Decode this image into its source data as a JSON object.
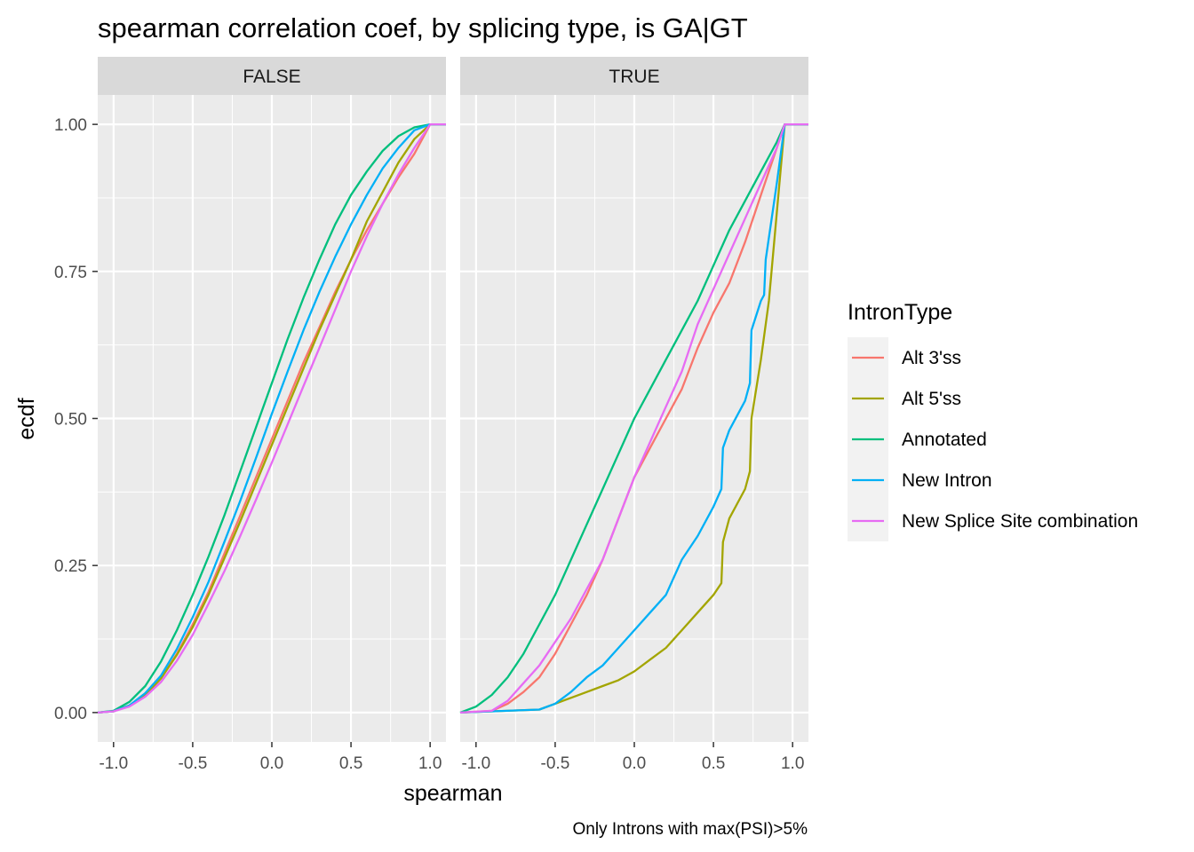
{
  "chart_data": {
    "type": "line",
    "title": "spearman correlation coef, by splicing type, is GA|GT",
    "xlabel": "spearman",
    "ylabel": "ecdf",
    "caption": "Only Introns with max(PSI)>5%",
    "xlim": [
      -1.1,
      1.1
    ],
    "ylim": [
      -0.05,
      1.05
    ],
    "x_ticks": [
      -1.0,
      -0.5,
      0.0,
      0.5,
      1.0
    ],
    "x_tick_labels": [
      "-1.0",
      "-0.5",
      "0.0",
      "0.5",
      "1.0"
    ],
    "y_ticks": [
      0,
      0.25,
      0.5,
      0.75,
      1.0
    ],
    "y_tick_labels": [
      "0.00",
      "0.25",
      "0.50",
      "0.75",
      "1.00"
    ],
    "legend": {
      "title": "IntronType",
      "position": "right"
    },
    "facets": [
      {
        "label": "FALSE",
        "series": [
          {
            "name": "Alt 3'ss",
            "color": "#F8766D",
            "x": [
              -1.1,
              -1.0,
              -0.9,
              -0.8,
              -0.7,
              -0.6,
              -0.5,
              -0.4,
              -0.3,
              -0.2,
              -0.1,
              0.0,
              0.1,
              0.2,
              0.3,
              0.4,
              0.5,
              0.6,
              0.7,
              0.8,
              0.9,
              1.0,
              1.1
            ],
            "y": [
              0,
              0.002,
              0.012,
              0.03,
              0.058,
              0.1,
              0.15,
              0.205,
              0.27,
              0.335,
              0.4,
              0.465,
              0.53,
              0.595,
              0.655,
              0.715,
              0.77,
              0.82,
              0.865,
              0.91,
              0.95,
              1.0,
              1.0
            ]
          },
          {
            "name": "Alt 5'ss",
            "color": "#A3A500",
            "x": [
              -1.1,
              -1.0,
              -0.9,
              -0.8,
              -0.7,
              -0.6,
              -0.5,
              -0.4,
              -0.3,
              -0.2,
              -0.1,
              0.0,
              0.1,
              0.2,
              0.3,
              0.4,
              0.5,
              0.6,
              0.7,
              0.8,
              0.9,
              1.0,
              1.1
            ],
            "y": [
              0,
              0.002,
              0.012,
              0.03,
              0.058,
              0.098,
              0.145,
              0.2,
              0.262,
              0.325,
              0.39,
              0.455,
              0.52,
              0.585,
              0.65,
              0.71,
              0.77,
              0.835,
              0.885,
              0.935,
              0.975,
              1.0,
              1.0
            ]
          },
          {
            "name": "Annotated",
            "color": "#00BF7D",
            "x": [
              -1.1,
              -1.0,
              -0.9,
              -0.8,
              -0.7,
              -0.6,
              -0.5,
              -0.4,
              -0.3,
              -0.2,
              -0.1,
              0.0,
              0.1,
              0.2,
              0.3,
              0.4,
              0.5,
              0.6,
              0.7,
              0.8,
              0.9,
              1.0,
              1.1
            ],
            "y": [
              0,
              0.003,
              0.018,
              0.045,
              0.087,
              0.14,
              0.2,
              0.265,
              0.335,
              0.41,
              0.485,
              0.56,
              0.635,
              0.705,
              0.77,
              0.83,
              0.88,
              0.92,
              0.955,
              0.98,
              0.995,
              1.0,
              1.0
            ]
          },
          {
            "name": "New Intron",
            "color": "#00B0F6",
            "x": [
              -1.1,
              -1.0,
              -0.9,
              -0.8,
              -0.7,
              -0.6,
              -0.5,
              -0.4,
              -0.3,
              -0.2,
              -0.1,
              0.0,
              0.1,
              0.2,
              0.3,
              0.4,
              0.5,
              0.6,
              0.7,
              0.8,
              0.9,
              1.0,
              1.1
            ],
            "y": [
              0,
              0.002,
              0.012,
              0.033,
              0.063,
              0.108,
              0.162,
              0.222,
              0.29,
              0.36,
              0.433,
              0.508,
              0.58,
              0.65,
              0.715,
              0.775,
              0.83,
              0.88,
              0.925,
              0.96,
              0.99,
              1.0,
              1.0
            ]
          },
          {
            "name": "New Splice Site combination",
            "color": "#E76BF3",
            "x": [
              -1.1,
              -1.0,
              -0.9,
              -0.8,
              -0.7,
              -0.6,
              -0.5,
              -0.4,
              -0.3,
              -0.2,
              -0.1,
              0.0,
              0.1,
              0.2,
              0.3,
              0.4,
              0.5,
              0.6,
              0.7,
              0.8,
              0.9,
              1.0,
              1.1
            ],
            "y": [
              0,
              0.002,
              0.01,
              0.027,
              0.052,
              0.088,
              0.132,
              0.185,
              0.24,
              0.3,
              0.362,
              0.425,
              0.49,
              0.555,
              0.62,
              0.685,
              0.75,
              0.81,
              0.865,
              0.915,
              0.96,
              1.0,
              1.0
            ]
          }
        ]
      },
      {
        "label": "TRUE",
        "series": [
          {
            "name": "Alt 3'ss",
            "color": "#F8766D",
            "x": [
              -1.1,
              -0.9,
              -0.8,
              -0.7,
              -0.6,
              -0.5,
              -0.4,
              -0.3,
              -0.2,
              -0.1,
              0.0,
              0.1,
              0.2,
              0.3,
              0.4,
              0.5,
              0.6,
              0.7,
              0.8,
              0.9,
              0.95,
              1.1
            ],
            "y": [
              0,
              0.003,
              0.015,
              0.035,
              0.06,
              0.1,
              0.15,
              0.2,
              0.26,
              0.33,
              0.4,
              0.45,
              0.5,
              0.55,
              0.62,
              0.68,
              0.73,
              0.8,
              0.88,
              0.96,
              1.0,
              1.0
            ]
          },
          {
            "name": "Alt 5'ss",
            "color": "#A3A500",
            "x": [
              -1.1,
              -0.6,
              -0.5,
              -0.4,
              -0.3,
              -0.2,
              -0.1,
              0.0,
              0.1,
              0.2,
              0.3,
              0.4,
              0.5,
              0.55,
              0.56,
              0.6,
              0.7,
              0.73,
              0.74,
              0.8,
              0.85,
              0.9,
              0.95,
              1.1
            ],
            "y": [
              0,
              0.005,
              0.015,
              0.025,
              0.035,
              0.045,
              0.055,
              0.07,
              0.09,
              0.11,
              0.14,
              0.17,
              0.2,
              0.22,
              0.29,
              0.33,
              0.38,
              0.41,
              0.5,
              0.6,
              0.7,
              0.85,
              1.0,
              1.0
            ]
          },
          {
            "name": "Annotated",
            "color": "#00BF7D",
            "x": [
              -1.1,
              -1.0,
              -0.9,
              -0.8,
              -0.7,
              -0.6,
              -0.5,
              -0.4,
              -0.3,
              -0.2,
              -0.1,
              0.0,
              0.1,
              0.2,
              0.3,
              0.4,
              0.5,
              0.6,
              0.7,
              0.8,
              0.9,
              0.95,
              1.1
            ],
            "y": [
              0,
              0.01,
              0.03,
              0.06,
              0.1,
              0.15,
              0.2,
              0.26,
              0.32,
              0.38,
              0.44,
              0.5,
              0.55,
              0.6,
              0.65,
              0.7,
              0.76,
              0.82,
              0.87,
              0.92,
              0.97,
              1.0,
              1.0
            ]
          },
          {
            "name": "New Intron",
            "color": "#00B0F6",
            "x": [
              -1.1,
              -0.6,
              -0.5,
              -0.4,
              -0.3,
              -0.2,
              -0.1,
              0.0,
              0.1,
              0.2,
              0.3,
              0.4,
              0.5,
              0.55,
              0.56,
              0.6,
              0.7,
              0.73,
              0.74,
              0.8,
              0.82,
              0.83,
              0.9,
              0.95,
              1.1
            ],
            "y": [
              0,
              0.005,
              0.015,
              0.035,
              0.06,
              0.08,
              0.11,
              0.14,
              0.17,
              0.2,
              0.26,
              0.3,
              0.35,
              0.38,
              0.45,
              0.48,
              0.53,
              0.56,
              0.65,
              0.7,
              0.71,
              0.77,
              0.9,
              1.0,
              1.0
            ]
          },
          {
            "name": "New Splice Site combination",
            "color": "#E76BF3",
            "x": [
              -1.1,
              -0.9,
              -0.8,
              -0.7,
              -0.6,
              -0.5,
              -0.4,
              -0.3,
              -0.2,
              -0.1,
              0.0,
              0.1,
              0.2,
              0.3,
              0.4,
              0.5,
              0.6,
              0.7,
              0.8,
              0.9,
              0.95,
              1.1
            ],
            "y": [
              0,
              0.003,
              0.02,
              0.05,
              0.08,
              0.12,
              0.16,
              0.21,
              0.26,
              0.33,
              0.4,
              0.46,
              0.52,
              0.58,
              0.66,
              0.72,
              0.78,
              0.84,
              0.9,
              0.96,
              1.0,
              1.0
            ]
          }
        ]
      }
    ]
  }
}
